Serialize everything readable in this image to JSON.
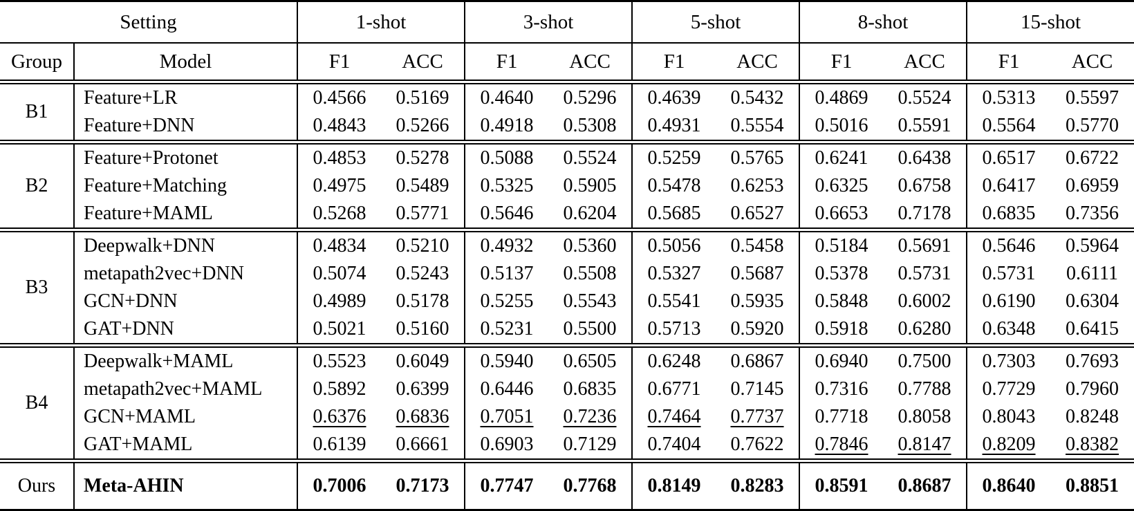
{
  "table": {
    "header": {
      "setting": "Setting",
      "group": "Group",
      "model": "Model",
      "shots": [
        "1-shot",
        "3-shot",
        "5-shot",
        "8-shot",
        "15-shot"
      ],
      "metric_f1": "F1",
      "metric_acc": "ACC"
    },
    "groups": [
      {
        "name": "B1",
        "bold": false,
        "rows": [
          {
            "model": "Feature+LR",
            "values": [
              "0.4566",
              "0.5169",
              "0.4640",
              "0.5296",
              "0.4639",
              "0.5432",
              "0.4869",
              "0.5524",
              "0.5313",
              "0.5597"
            ],
            "underline": []
          },
          {
            "model": "Feature+DNN",
            "values": [
              "0.4843",
              "0.5266",
              "0.4918",
              "0.5308",
              "0.4931",
              "0.5554",
              "0.5016",
              "0.5591",
              "0.5564",
              "0.5770"
            ],
            "underline": []
          }
        ]
      },
      {
        "name": "B2",
        "bold": false,
        "rows": [
          {
            "model": "Feature+Protonet",
            "values": [
              "0.4853",
              "0.5278",
              "0.5088",
              "0.5524",
              "0.5259",
              "0.5765",
              "0.6241",
              "0.6438",
              "0.6517",
              "0.6722"
            ],
            "underline": []
          },
          {
            "model": "Feature+Matching",
            "values": [
              "0.4975",
              "0.5489",
              "0.5325",
              "0.5905",
              "0.5478",
              "0.6253",
              "0.6325",
              "0.6758",
              "0.6417",
              "0.6959"
            ],
            "underline": []
          },
          {
            "model": "Feature+MAML",
            "values": [
              "0.5268",
              "0.5771",
              "0.5646",
              "0.6204",
              "0.5685",
              "0.6527",
              "0.6653",
              "0.7178",
              "0.6835",
              "0.7356"
            ],
            "underline": []
          }
        ]
      },
      {
        "name": "B3",
        "bold": false,
        "rows": [
          {
            "model": "Deepwalk+DNN",
            "values": [
              "0.4834",
              "0.5210",
              "0.4932",
              "0.5360",
              "0.5056",
              "0.5458",
              "0.5184",
              "0.5691",
              "0.5646",
              "0.5964"
            ],
            "underline": []
          },
          {
            "model": "metapath2vec+DNN",
            "values": [
              "0.5074",
              "0.5243",
              "0.5137",
              "0.5508",
              "0.5327",
              "0.5687",
              "0.5378",
              "0.5731",
              "0.5731",
              "0.6111"
            ],
            "underline": []
          },
          {
            "model": "GCN+DNN",
            "values": [
              "0.4989",
              "0.5178",
              "0.5255",
              "0.5543",
              "0.5541",
              "0.5935",
              "0.5848",
              "0.6002",
              "0.6190",
              "0.6304"
            ],
            "underline": []
          },
          {
            "model": "GAT+DNN",
            "values": [
              "0.5021",
              "0.5160",
              "0.5231",
              "0.5500",
              "0.5713",
              "0.5920",
              "0.5918",
              "0.6280",
              "0.6348",
              "0.6415"
            ],
            "underline": []
          }
        ]
      },
      {
        "name": "B4",
        "bold": false,
        "rows": [
          {
            "model": "Deepwalk+MAML",
            "values": [
              "0.5523",
              "0.6049",
              "0.5940",
              "0.6505",
              "0.6248",
              "0.6867",
              "0.6940",
              "0.7500",
              "0.7303",
              "0.7693"
            ],
            "underline": []
          },
          {
            "model": "metapath2vec+MAML",
            "values": [
              "0.5892",
              "0.6399",
              "0.6446",
              "0.6835",
              "0.6771",
              "0.7145",
              "0.7316",
              "0.7788",
              "0.7729",
              "0.7960"
            ],
            "underline": []
          },
          {
            "model": "GCN+MAML",
            "values": [
              "0.6376",
              "0.6836",
              "0.7051",
              "0.7236",
              "0.7464",
              "0.7737",
              "0.7718",
              "0.8058",
              "0.8043",
              "0.8248"
            ],
            "underline": [
              0,
              1,
              2,
              3,
              4,
              5
            ]
          },
          {
            "model": "GAT+MAML",
            "values": [
              "0.6139",
              "0.6661",
              "0.6903",
              "0.7129",
              "0.7404",
              "0.7622",
              "0.7846",
              "0.8147",
              "0.8209",
              "0.8382"
            ],
            "underline": [
              6,
              7,
              8,
              9
            ]
          }
        ]
      },
      {
        "name": "Ours",
        "bold": true,
        "rows": [
          {
            "model": "Meta-AHIN",
            "values": [
              "0.7006",
              "0.7173",
              "0.7747",
              "0.7768",
              "0.8149",
              "0.8283",
              "0.8591",
              "0.8687",
              "0.8640",
              "0.8851"
            ],
            "underline": []
          }
        ]
      }
    ],
    "colors": {
      "text": "#000000",
      "background": "#ffffff",
      "rule": "#000000"
    }
  }
}
